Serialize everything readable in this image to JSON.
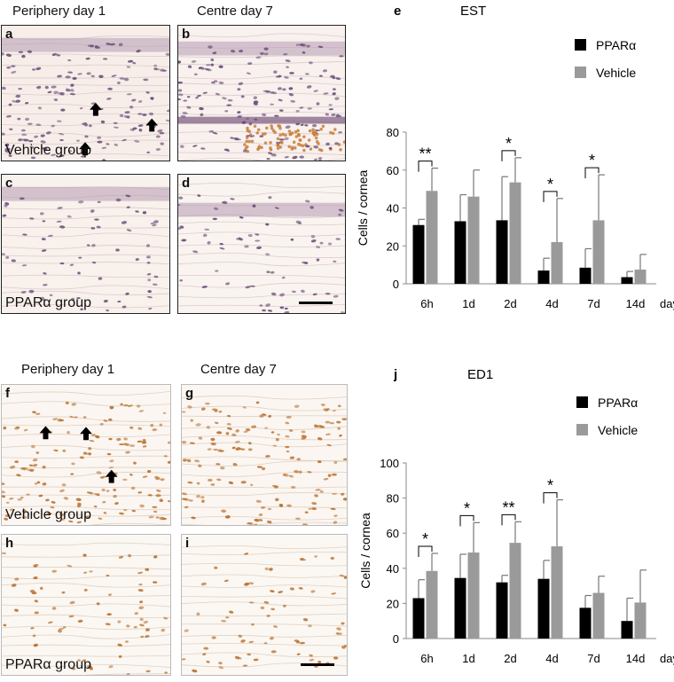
{
  "top": {
    "col1_title": "Periphery day 1",
    "col2_title": "Centre day 7",
    "panels": {
      "a": {
        "label": "a",
        "group": "Vehicle group"
      },
      "b": {
        "label": "b"
      },
      "c": {
        "label": "c",
        "group": "PPARα group"
      },
      "d": {
        "label": "d"
      }
    }
  },
  "bottom": {
    "col1_title": "Periphery day 1",
    "col2_title": "Centre day 7",
    "panels": {
      "f": {
        "label": "f",
        "group": "Vehicle group"
      },
      "g": {
        "label": "g"
      },
      "h": {
        "label": "h",
        "group": "PPARα group"
      },
      "i": {
        "label": "i"
      }
    }
  },
  "colors": {
    "ppar": "#000000",
    "vehicle": "#9a9a9a",
    "he_stain": "#6a4e78",
    "he_rbc": "#c87f3a",
    "ihc_stain": "#b8702e"
  },
  "chart_data": [
    {
      "panel_label": "e",
      "type": "bar",
      "title": "EST",
      "ylabel": "Cells / cornea",
      "xlabel": "days",
      "ylim": [
        0,
        80
      ],
      "yticks": [
        0,
        20,
        40,
        60,
        80
      ],
      "categories": [
        "6h",
        "1d",
        "2d",
        "4d",
        "7d",
        "14d"
      ],
      "legend_position": "top-right",
      "series": [
        {
          "name": "PPARα",
          "color": "#000000",
          "values": [
            31,
            33,
            33.5,
            7,
            8.5,
            3.5
          ],
          "errors": [
            3,
            14,
            23,
            6.5,
            10,
            3
          ]
        },
        {
          "name": "Vehicle",
          "color": "#9a9a9a",
          "values": [
            49,
            46,
            53.5,
            22,
            33.5,
            7.5
          ],
          "errors": [
            12,
            14,
            13,
            23,
            24,
            8
          ]
        }
      ],
      "significance": [
        {
          "category": "6h",
          "label": "**"
        },
        {
          "category": "2d",
          "label": "*"
        },
        {
          "category": "4d",
          "label": "*"
        },
        {
          "category": "7d",
          "label": "*"
        }
      ]
    },
    {
      "panel_label": "j",
      "type": "bar",
      "title": "ED1",
      "ylabel": "Cells / cornea",
      "xlabel": "days",
      "ylim": [
        0,
        100
      ],
      "yticks": [
        0,
        20,
        40,
        60,
        80,
        100
      ],
      "categories": [
        "6h",
        "1d",
        "2d",
        "4d",
        "7d",
        "14d"
      ],
      "legend_position": "top-right",
      "series": [
        {
          "name": "PPARα",
          "color": "#000000",
          "values": [
            23,
            34.5,
            32,
            34,
            17.5,
            10
          ],
          "errors": [
            10.5,
            13.5,
            4,
            10.5,
            7,
            13
          ]
        },
        {
          "name": "Vehicle",
          "color": "#9a9a9a",
          "values": [
            38.5,
            49,
            54.5,
            52.5,
            26,
            20.5
          ],
          "errors": [
            10,
            17,
            12,
            26.5,
            9.5,
            18.5
          ]
        }
      ],
      "significance": [
        {
          "category": "6h",
          "label": "*"
        },
        {
          "category": "1d",
          "label": "*"
        },
        {
          "category": "2d",
          "label": "**"
        },
        {
          "category": "4d",
          "label": "*"
        }
      ]
    }
  ]
}
